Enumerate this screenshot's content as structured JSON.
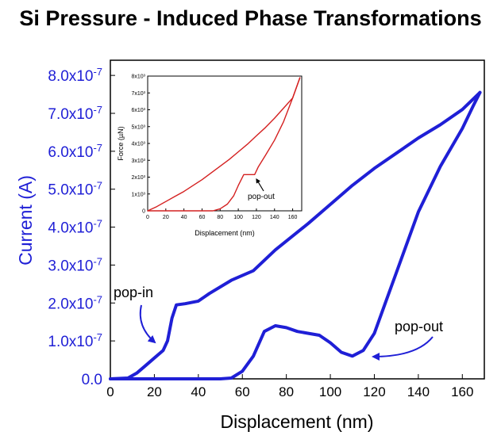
{
  "title": "Si Pressure - Induced Phase Transformations",
  "colors": {
    "main_series": "#1f1fd6",
    "inset_series": "#d42020",
    "axis": "#000000"
  },
  "chart_data": [
    {
      "type": "line",
      "title": "Si Pressure - Induced Phase Transformations",
      "xlabel": "Displacement (nm)",
      "ylabel": "Current (A)",
      "xlim": [
        0,
        170
      ],
      "ylim": [
        0,
        8.4e-07
      ],
      "x_ticks": [
        "0",
        "20",
        "40",
        "60",
        "80",
        "100",
        "120",
        "140",
        "160"
      ],
      "y_ticks": [
        "0.0",
        "1.0x10-7",
        "2.0x10-7",
        "3.0x10-7",
        "4.0x10-7",
        "5.0x10-7",
        "6.0x10-7",
        "7.0x10-7",
        "8.0x10-7"
      ],
      "grid": false,
      "series": [
        {
          "segment": "loading",
          "points": [
            [
              0,
              0
            ],
            [
              8,
              2e-09
            ],
            [
              12,
              1.5e-08
            ],
            [
              16,
              3.5e-08
            ],
            [
              20,
              5.5e-08
            ],
            [
              24,
              7.5e-08
            ],
            [
              26,
              1e-07
            ],
            [
              28,
              1.6e-07
            ],
            [
              30,
              1.95e-07
            ],
            [
              34,
              1.98e-07
            ],
            [
              40,
              2.05e-07
            ],
            [
              45,
              2.25e-07
            ],
            [
              55,
              2.6e-07
            ],
            [
              65,
              2.85e-07
            ],
            [
              75,
              3.4e-07
            ],
            [
              90,
              4.1e-07
            ],
            [
              100,
              4.6e-07
            ],
            [
              110,
              5.1e-07
            ],
            [
              120,
              5.55e-07
            ],
            [
              130,
              5.95e-07
            ],
            [
              140,
              6.35e-07
            ],
            [
              150,
              6.7e-07
            ],
            [
              160,
              7.1e-07
            ],
            [
              168,
              7.55e-07
            ]
          ]
        },
        {
          "segment": "unloading",
          "points": [
            [
              168,
              7.55e-07
            ],
            [
              165,
              7.2e-07
            ],
            [
              160,
              6.6e-07
            ],
            [
              150,
              5.6e-07
            ],
            [
              140,
              4.4e-07
            ],
            [
              130,
              2.8e-07
            ],
            [
              125,
              2e-07
            ],
            [
              120,
              1.2e-07
            ],
            [
              115,
              7.5e-08
            ],
            [
              110,
              6e-08
            ],
            [
              105,
              7e-08
            ],
            [
              100,
              9.5e-08
            ],
            [
              95,
              1.15e-07
            ],
            [
              90,
              1.2e-07
            ],
            [
              85,
              1.25e-07
            ],
            [
              80,
              1.35e-07
            ],
            [
              75,
              1.4e-07
            ],
            [
              70,
              1.25e-07
            ],
            [
              65,
              6e-08
            ],
            [
              60,
              2e-08
            ],
            [
              55,
              2e-09
            ],
            [
              50,
              0
            ],
            [
              0,
              0
            ]
          ]
        }
      ],
      "annotations": [
        {
          "text": "pop-in",
          "x": 24,
          "y": 1e-07
        },
        {
          "text": "pop-out",
          "x": 112,
          "y": 6e-08
        }
      ]
    },
    {
      "type": "line",
      "title": "",
      "xlabel": "Displacement (nm)",
      "ylabel": "Force (µN)",
      "xlim": [
        0,
        170
      ],
      "ylim": [
        0,
        8000
      ],
      "x_ticks": [
        "0",
        "20",
        "40",
        "60",
        "80",
        "100",
        "120",
        "140",
        "160"
      ],
      "y_ticks": [
        "0",
        "1x10³",
        "2x10³",
        "3x10³",
        "4x10³",
        "5x10³",
        "6x10³",
        "7x10³",
        "8x10³"
      ],
      "grid": false,
      "series": [
        {
          "segment": "loading",
          "points": [
            [
              0,
              0
            ],
            [
              10,
              250
            ],
            [
              20,
              550
            ],
            [
              30,
              850
            ],
            [
              40,
              1150
            ],
            [
              50,
              1500
            ],
            [
              60,
              1850
            ],
            [
              70,
              2250
            ],
            [
              80,
              2650
            ],
            [
              90,
              3050
            ],
            [
              100,
              3500
            ],
            [
              110,
              3950
            ],
            [
              120,
              4450
            ],
            [
              130,
              4950
            ],
            [
              140,
              5500
            ],
            [
              150,
              6100
            ],
            [
              160,
              6700
            ],
            [
              168,
              7900
            ]
          ]
        },
        {
          "segment": "unloading",
          "points": [
            [
              168,
              7900
            ],
            [
              160,
              6700
            ],
            [
              150,
              5300
            ],
            [
              140,
              4200
            ],
            [
              130,
              3300
            ],
            [
              122,
              2600
            ],
            [
              118,
              2150
            ],
            [
              110,
              2150
            ],
            [
              106,
              2150
            ],
            [
              100,
              1500
            ],
            [
              95,
              900
            ],
            [
              88,
              400
            ],
            [
              80,
              120
            ],
            [
              72,
              0
            ],
            [
              0,
              0
            ]
          ]
        }
      ],
      "annotations": [
        {
          "text": "pop-out",
          "x": 118,
          "y": 2150
        }
      ]
    }
  ]
}
